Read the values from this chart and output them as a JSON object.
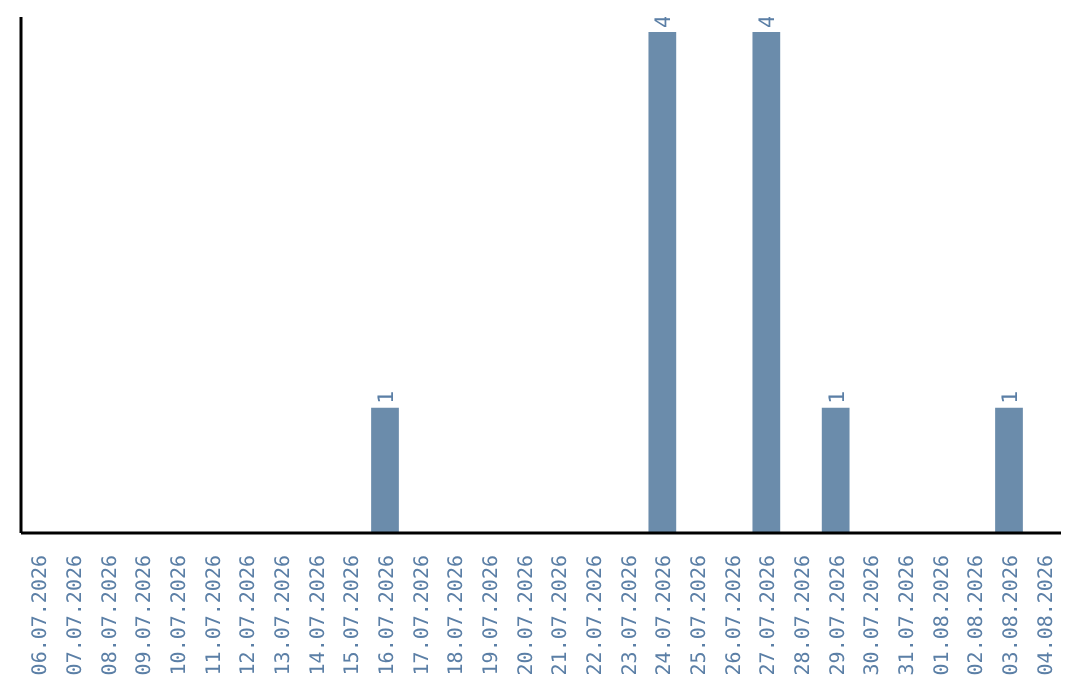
{
  "chart_data": {
    "type": "bar",
    "categories": [
      "06.07.2026",
      "07.07.2026",
      "08.07.2026",
      "09.07.2026",
      "10.07.2026",
      "11.07.2026",
      "12.07.2026",
      "13.07.2026",
      "14.07.2026",
      "15.07.2026",
      "16.07.2026",
      "17.07.2026",
      "18.07.2026",
      "19.07.2026",
      "20.07.2026",
      "21.07.2026",
      "22.07.2026",
      "23.07.2026",
      "24.07.2026",
      "25.07.2026",
      "26.07.2026",
      "27.07.2026",
      "28.07.2026",
      "29.07.2026",
      "30.07.2026",
      "31.07.2026",
      "01.08.2026",
      "02.08.2026",
      "03.08.2026",
      "04.08.2026"
    ],
    "values": [
      0,
      0,
      0,
      0,
      0,
      0,
      0,
      0,
      0,
      0,
      1,
      0,
      0,
      0,
      0,
      0,
      0,
      0,
      4,
      0,
      0,
      4,
      0,
      1,
      0,
      0,
      0,
      0,
      1,
      0
    ],
    "value_labels": [
      null,
      null,
      null,
      null,
      null,
      null,
      null,
      null,
      null,
      null,
      "1",
      null,
      null,
      null,
      null,
      null,
      null,
      null,
      "4",
      null,
      null,
      "4",
      null,
      "1",
      null,
      null,
      null,
      null,
      "1",
      null
    ],
    "color": "#6b8cab",
    "tick_labels": "x",
    "grid": false
  }
}
